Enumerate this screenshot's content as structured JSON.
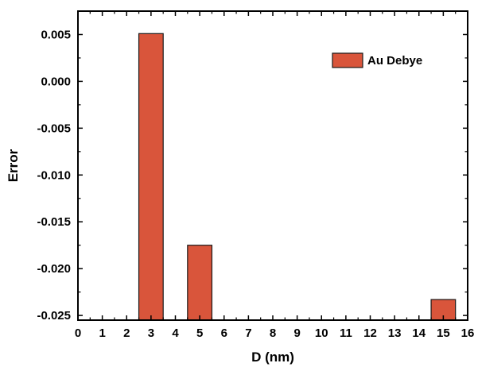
{
  "chart_data": {
    "type": "bar",
    "xlabel": "D (nm)",
    "ylabel": "Error",
    "xlim": [
      0,
      16
    ],
    "ylim": [
      -0.0255,
      0.0075
    ],
    "x_ticks": [
      0,
      1,
      2,
      3,
      4,
      5,
      6,
      7,
      8,
      9,
      10,
      11,
      12,
      13,
      14,
      15,
      16
    ],
    "x_tick_labels": [
      "0",
      "1",
      "2",
      "3",
      "4",
      "5",
      "6",
      "7",
      "8",
      "9",
      "10",
      "11",
      "12",
      "13",
      "14",
      "15",
      "16"
    ],
    "y_ticks": [
      0.005,
      0.0,
      -0.005,
      -0.01,
      -0.015,
      -0.02,
      -0.025
    ],
    "y_tick_labels": [
      "0.005",
      "0.000",
      "-0.005",
      "-0.010",
      "-0.015",
      "-0.020",
      "-0.025"
    ],
    "bar_width": 1.0,
    "grid": false,
    "legend_position": "top-right",
    "bar_color": "#D9553B",
    "bar_edge_color": "#1a1a1a",
    "series": [
      {
        "name": "Au Debye",
        "x": [
          3,
          5,
          15
        ],
        "values": [
          0.0051,
          -0.0175,
          -0.0233
        ]
      }
    ]
  }
}
